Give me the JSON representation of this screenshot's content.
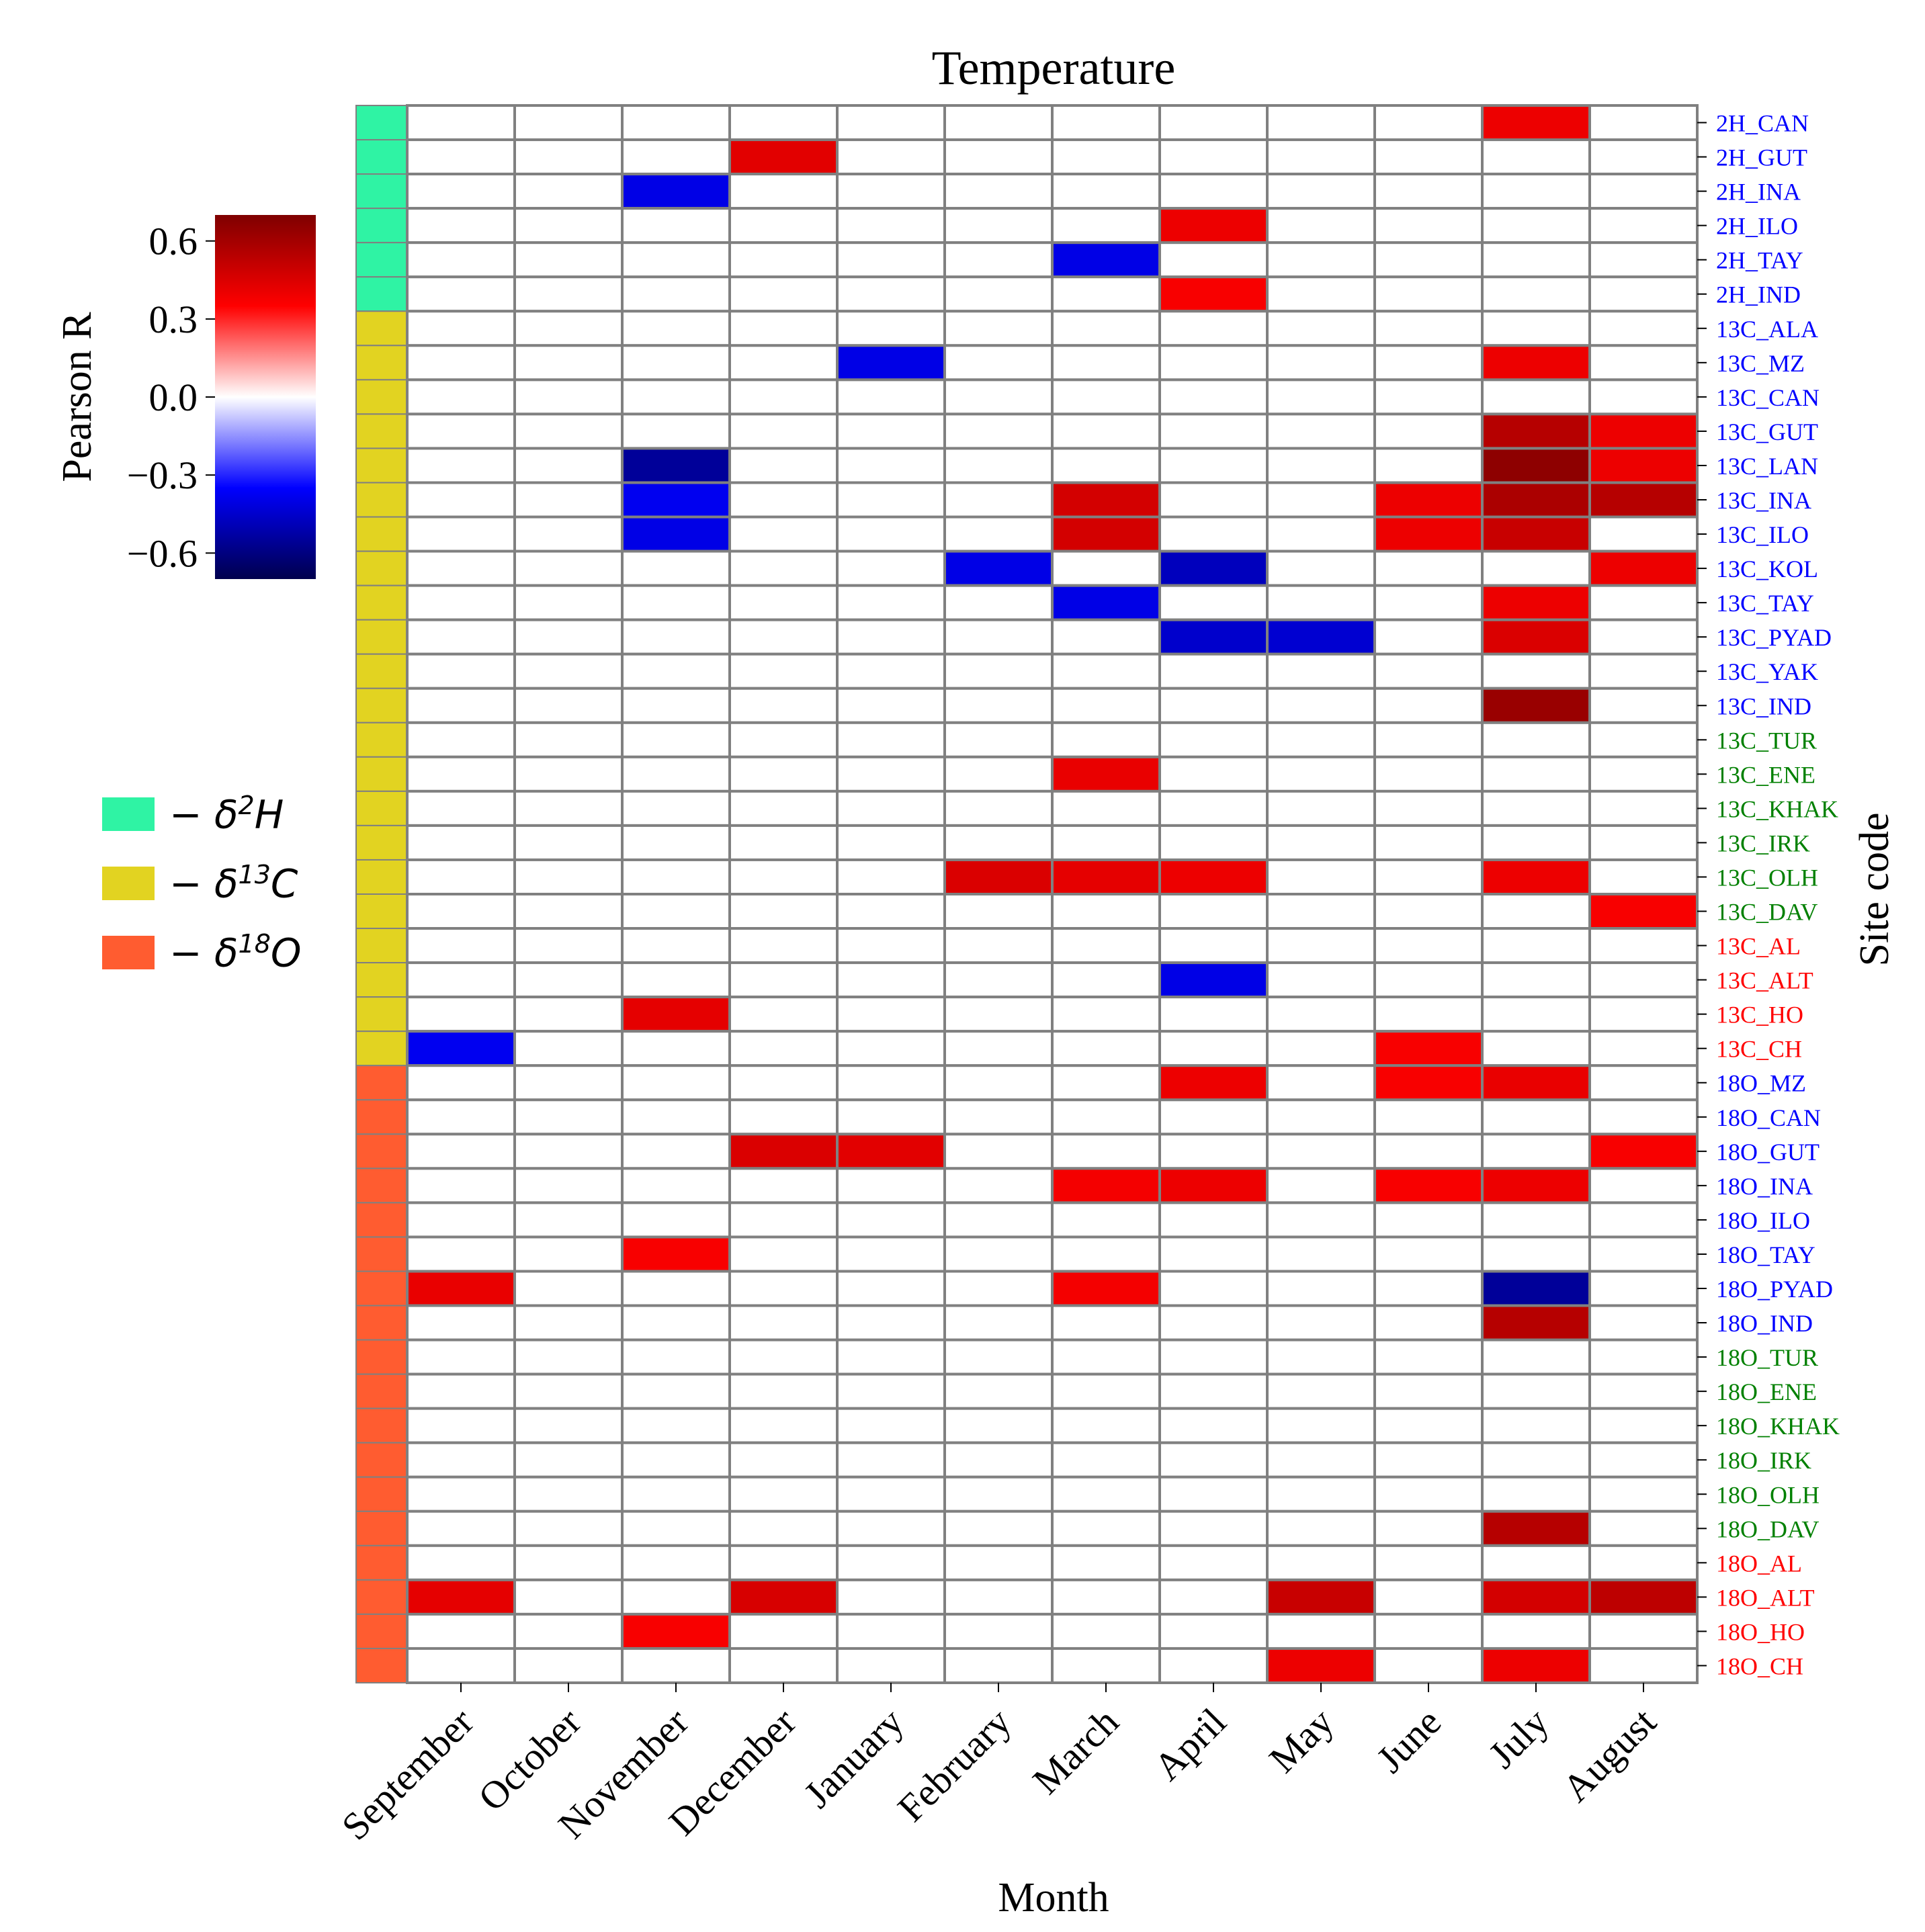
{
  "chart_data": {
    "type": "heatmap",
    "title": "Temperature",
    "xlabel": "Month",
    "ylabel": "Site code",
    "colorbar": {
      "label": "Pearson R",
      "range": [
        -0.7,
        0.7
      ],
      "ticks": [
        0.6,
        0.3,
        0.0,
        -0.3,
        -0.6
      ],
      "tick_labels": [
        "0.6",
        "0.3",
        "0.0",
        "−0.3",
        "−0.6"
      ],
      "colormap": "seismic"
    },
    "months": [
      "September",
      "October",
      "November",
      "December",
      "January",
      "February",
      "March",
      "April",
      "May",
      "June",
      "July",
      "August"
    ],
    "sites": [
      {
        "code": "2H_CAN",
        "group": "2H",
        "label_color": "#0000ff"
      },
      {
        "code": "2H_GUT",
        "group": "2H",
        "label_color": "#0000ff"
      },
      {
        "code": "2H_INA",
        "group": "2H",
        "label_color": "#0000ff"
      },
      {
        "code": "2H_ILO",
        "group": "2H",
        "label_color": "#0000ff"
      },
      {
        "code": "2H_TAY",
        "group": "2H",
        "label_color": "#0000ff"
      },
      {
        "code": "2H_IND",
        "group": "2H",
        "label_color": "#0000ff"
      },
      {
        "code": "13C_ALA",
        "group": "13C",
        "label_color": "#0000ff"
      },
      {
        "code": "13C_MZ",
        "group": "13C",
        "label_color": "#0000ff"
      },
      {
        "code": "13C_CAN",
        "group": "13C",
        "label_color": "#0000ff"
      },
      {
        "code": "13C_GUT",
        "group": "13C",
        "label_color": "#0000ff"
      },
      {
        "code": "13C_LAN",
        "group": "13C",
        "label_color": "#0000ff"
      },
      {
        "code": "13C_INA",
        "group": "13C",
        "label_color": "#0000ff"
      },
      {
        "code": "13C_ILO",
        "group": "13C",
        "label_color": "#0000ff"
      },
      {
        "code": "13C_KOL",
        "group": "13C",
        "label_color": "#0000ff"
      },
      {
        "code": "13C_TAY",
        "group": "13C",
        "label_color": "#0000ff"
      },
      {
        "code": "13C_PYAD",
        "group": "13C",
        "label_color": "#0000ff"
      },
      {
        "code": "13C_YAK",
        "group": "13C",
        "label_color": "#0000ff"
      },
      {
        "code": "13C_IND",
        "group": "13C",
        "label_color": "#0000ff"
      },
      {
        "code": "13C_TUR",
        "group": "13C",
        "label_color": "#008000"
      },
      {
        "code": "13C_ENE",
        "group": "13C",
        "label_color": "#008000"
      },
      {
        "code": "13C_KHAK",
        "group": "13C",
        "label_color": "#008000"
      },
      {
        "code": "13C_IRK",
        "group": "13C",
        "label_color": "#008000"
      },
      {
        "code": "13C_OLH",
        "group": "13C",
        "label_color": "#008000"
      },
      {
        "code": "13C_DAV",
        "group": "13C",
        "label_color": "#008000"
      },
      {
        "code": "13C_AL",
        "group": "13C",
        "label_color": "#ff0000"
      },
      {
        "code": "13C_ALT",
        "group": "13C",
        "label_color": "#ff0000"
      },
      {
        "code": "13C_HO",
        "group": "13C",
        "label_color": "#ff0000"
      },
      {
        "code": "13C_CH",
        "group": "13C",
        "label_color": "#ff0000"
      },
      {
        "code": "18O_MZ",
        "group": "18O",
        "label_color": "#0000ff"
      },
      {
        "code": "18O_CAN",
        "group": "18O",
        "label_color": "#0000ff"
      },
      {
        "code": "18O_GUT",
        "group": "18O",
        "label_color": "#0000ff"
      },
      {
        "code": "18O_INA",
        "group": "18O",
        "label_color": "#0000ff"
      },
      {
        "code": "18O_ILO",
        "group": "18O",
        "label_color": "#0000ff"
      },
      {
        "code": "18O_TAY",
        "group": "18O",
        "label_color": "#0000ff"
      },
      {
        "code": "18O_PYAD",
        "group": "18O",
        "label_color": "#0000ff"
      },
      {
        "code": "18O_IND",
        "group": "18O",
        "label_color": "#0000ff"
      },
      {
        "code": "18O_TUR",
        "group": "18O",
        "label_color": "#008000"
      },
      {
        "code": "18O_ENE",
        "group": "18O",
        "label_color": "#008000"
      },
      {
        "code": "18O_KHAK",
        "group": "18O",
        "label_color": "#008000"
      },
      {
        "code": "18O_IRK",
        "group": "18O",
        "label_color": "#008000"
      },
      {
        "code": "18O_OLH",
        "group": "18O",
        "label_color": "#008000"
      },
      {
        "code": "18O_DAV",
        "group": "18O",
        "label_color": "#008000"
      },
      {
        "code": "18O_AL",
        "group": "18O",
        "label_color": "#ff0000"
      },
      {
        "code": "18O_ALT",
        "group": "18O",
        "label_color": "#ff0000"
      },
      {
        "code": "18O_HO",
        "group": "18O",
        "label_color": "#ff0000"
      },
      {
        "code": "18O_CH",
        "group": "18O",
        "label_color": "#ff0000"
      }
    ],
    "cells": [
      {
        "site": 0,
        "month": 10,
        "r": 0.4
      },
      {
        "site": 1,
        "month": 3,
        "r": 0.43
      },
      {
        "site": 2,
        "month": 2,
        "r": -0.4
      },
      {
        "site": 3,
        "month": 7,
        "r": 0.4
      },
      {
        "site": 4,
        "month": 6,
        "r": -0.4
      },
      {
        "site": 5,
        "month": 7,
        "r": 0.37
      },
      {
        "site": 7,
        "month": 4,
        "r": -0.4
      },
      {
        "site": 7,
        "month": 10,
        "r": 0.4
      },
      {
        "site": 9,
        "month": 10,
        "r": 0.55
      },
      {
        "site": 9,
        "month": 11,
        "r": 0.4
      },
      {
        "site": 10,
        "month": 2,
        "r": -0.55
      },
      {
        "site": 10,
        "month": 10,
        "r": 0.66
      },
      {
        "site": 10,
        "month": 11,
        "r": 0.4
      },
      {
        "site": 11,
        "month": 2,
        "r": -0.38
      },
      {
        "site": 11,
        "month": 6,
        "r": 0.47
      },
      {
        "site": 11,
        "month": 9,
        "r": 0.4
      },
      {
        "site": 11,
        "month": 10,
        "r": 0.58
      },
      {
        "site": 11,
        "month": 11,
        "r": 0.55
      },
      {
        "site": 12,
        "month": 2,
        "r": -0.4
      },
      {
        "site": 12,
        "month": 6,
        "r": 0.47
      },
      {
        "site": 12,
        "month": 9,
        "r": 0.4
      },
      {
        "site": 12,
        "month": 10,
        "r": 0.5
      },
      {
        "site": 13,
        "month": 5,
        "r": -0.4
      },
      {
        "site": 13,
        "month": 7,
        "r": -0.48
      },
      {
        "site": 13,
        "month": 11,
        "r": 0.4
      },
      {
        "site": 14,
        "month": 6,
        "r": -0.4
      },
      {
        "site": 14,
        "month": 10,
        "r": 0.4
      },
      {
        "site": 15,
        "month": 7,
        "r": -0.45
      },
      {
        "site": 15,
        "month": 8,
        "r": -0.44
      },
      {
        "site": 15,
        "month": 10,
        "r": 0.45
      },
      {
        "site": 17,
        "month": 10,
        "r": 0.63
      },
      {
        "site": 19,
        "month": 6,
        "r": 0.41
      },
      {
        "site": 22,
        "month": 5,
        "r": 0.45
      },
      {
        "site": 22,
        "month": 6,
        "r": 0.42
      },
      {
        "site": 22,
        "month": 7,
        "r": 0.4
      },
      {
        "site": 22,
        "month": 10,
        "r": 0.4
      },
      {
        "site": 23,
        "month": 11,
        "r": 0.37
      },
      {
        "site": 25,
        "month": 7,
        "r": -0.4
      },
      {
        "site": 26,
        "month": 2,
        "r": 0.42
      },
      {
        "site": 27,
        "month": 0,
        "r": -0.38
      },
      {
        "site": 27,
        "month": 9,
        "r": 0.37
      },
      {
        "site": 28,
        "month": 7,
        "r": 0.4
      },
      {
        "site": 28,
        "month": 9,
        "r": 0.37
      },
      {
        "site": 28,
        "month": 10,
        "r": 0.41
      },
      {
        "site": 30,
        "month": 3,
        "r": 0.45
      },
      {
        "site": 30,
        "month": 4,
        "r": 0.43
      },
      {
        "site": 30,
        "month": 11,
        "r": 0.37
      },
      {
        "site": 31,
        "month": 6,
        "r": 0.38
      },
      {
        "site": 31,
        "month": 7,
        "r": 0.4
      },
      {
        "site": 31,
        "month": 9,
        "r": 0.37
      },
      {
        "site": 31,
        "month": 10,
        "r": 0.4
      },
      {
        "site": 33,
        "month": 2,
        "r": 0.37
      },
      {
        "site": 34,
        "month": 0,
        "r": 0.41
      },
      {
        "site": 34,
        "month": 6,
        "r": 0.38
      },
      {
        "site": 34,
        "month": 10,
        "r": -0.55
      },
      {
        "site": 35,
        "month": 10,
        "r": 0.55
      },
      {
        "site": 41,
        "month": 10,
        "r": 0.55
      },
      {
        "site": 43,
        "month": 0,
        "r": 0.42
      },
      {
        "site": 43,
        "month": 3,
        "r": 0.46
      },
      {
        "site": 43,
        "month": 8,
        "r": 0.5
      },
      {
        "site": 43,
        "month": 10,
        "r": 0.47
      },
      {
        "site": 43,
        "month": 11,
        "r": 0.53
      },
      {
        "site": 44,
        "month": 2,
        "r": 0.37
      },
      {
        "site": 45,
        "month": 8,
        "r": 0.4
      },
      {
        "site": 45,
        "month": 10,
        "r": 0.4
      }
    ]
  },
  "legend": {
    "items": [
      {
        "key": "2H",
        "label": "− δ",
        "sup": "2",
        "tail": "H",
        "color": "#2ff3a4"
      },
      {
        "key": "13C",
        "label": "− δ",
        "sup": "13",
        "tail": "C",
        "color": "#e2d321"
      },
      {
        "key": "18O",
        "label": "− δ",
        "sup": "18",
        "tail": "O",
        "color": "#ff5c30"
      }
    ]
  }
}
